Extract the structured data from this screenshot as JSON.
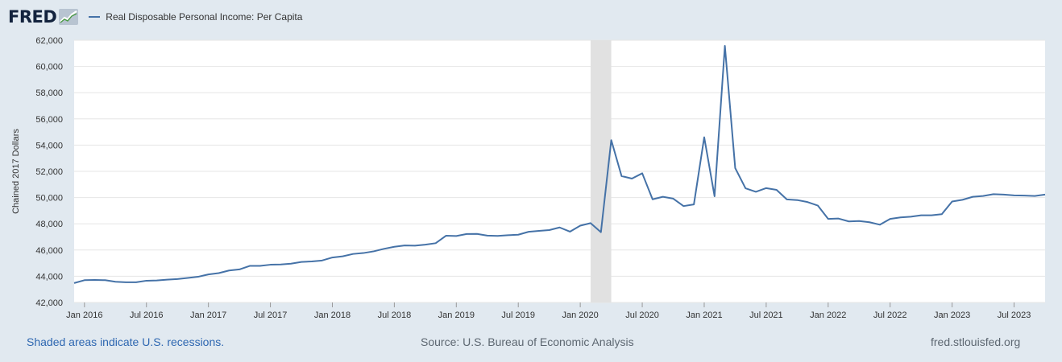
{
  "brand": {
    "logo_text": "FRED",
    "icon": "fred-chart-logo-icon"
  },
  "chart_data": {
    "type": "line",
    "title": "",
    "xlabel": "",
    "ylabel": "Chained 2017 Dollars",
    "ylim": [
      42000,
      62000
    ],
    "yticks": [
      42000,
      44000,
      46000,
      48000,
      50000,
      52000,
      54000,
      56000,
      58000,
      60000,
      62000
    ],
    "ytick_labels": [
      "42,000",
      "44,000",
      "46,000",
      "48,000",
      "50,000",
      "52,000",
      "54,000",
      "56,000",
      "58,000",
      "60,000",
      "62,000"
    ],
    "xticks": [
      "2016-01",
      "2016-07",
      "2017-01",
      "2017-07",
      "2018-01",
      "2018-07",
      "2019-01",
      "2019-07",
      "2020-01",
      "2020-07",
      "2021-01",
      "2021-07",
      "2022-01",
      "2022-07",
      "2023-01",
      "2023-07"
    ],
    "xtick_labels": [
      "Jan 2016",
      "Jul 2016",
      "Jan 2017",
      "Jul 2017",
      "Jan 2018",
      "Jul 2018",
      "Jan 2019",
      "Jul 2019",
      "Jan 2020",
      "Jul 2020",
      "Jan 2021",
      "Jul 2021",
      "Jan 2022",
      "Jul 2022",
      "Jan 2023",
      "Jul 2023"
    ],
    "grid": true,
    "legend_position": "top-left",
    "recession_shading": [
      {
        "start": "2020-02",
        "end": "2020-04"
      }
    ],
    "x_start": "2015-12",
    "series": [
      {
        "name": "Real Disposable Personal Income: Per Capita",
        "color": "#4572a7",
        "values": [
          43480,
          43700,
          43720,
          43700,
          43580,
          43540,
          43540,
          43660,
          43680,
          43740,
          43790,
          43870,
          43960,
          44140,
          44240,
          44440,
          44520,
          44790,
          44790,
          44880,
          44900,
          44960,
          45090,
          45130,
          45200,
          45430,
          45520,
          45700,
          45770,
          45900,
          46090,
          46250,
          46350,
          46330,
          46410,
          46520,
          47090,
          47070,
          47220,
          47230,
          47100,
          47080,
          47130,
          47170,
          47390,
          47460,
          47520,
          47720,
          47400,
          47860,
          48050,
          47360,
          54380,
          51640,
          51450,
          51850,
          49870,
          50060,
          49920,
          49350,
          49480,
          54600,
          50100,
          61570,
          52250,
          50710,
          50440,
          50720,
          50590,
          49860,
          49810,
          49660,
          49390,
          48370,
          48400,
          48180,
          48210,
          48120,
          47930,
          48370,
          48490,
          48540,
          48650,
          48650,
          48730,
          49700,
          49830,
          50060,
          50120,
          50260,
          50230,
          50170,
          50150,
          50120,
          50230
        ]
      }
    ]
  },
  "footer": {
    "recession_note": "Shaded areas indicate U.S. recessions.",
    "source": "Source: U.S. Bureau of Economic Analysis",
    "site": "fred.stlouisfed.org"
  }
}
